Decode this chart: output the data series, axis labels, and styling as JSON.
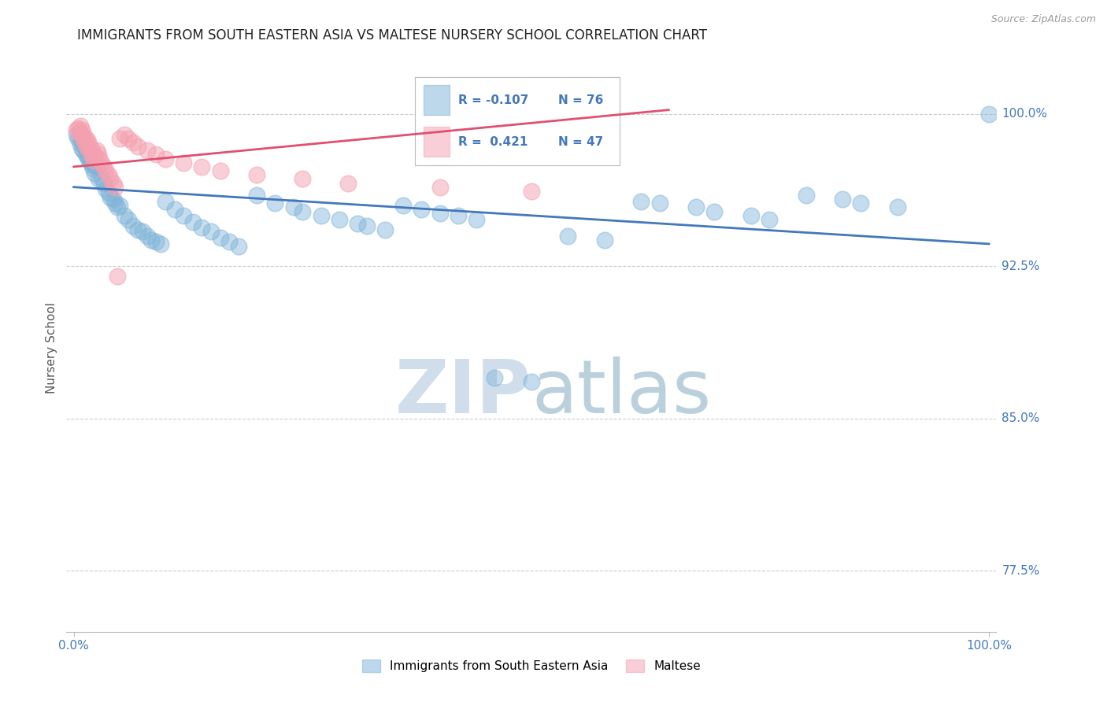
{
  "title": "IMMIGRANTS FROM SOUTH EASTERN ASIA VS MALTESE NURSERY SCHOOL CORRELATION CHART",
  "source": "Source: ZipAtlas.com",
  "ylabel": "Nursery School",
  "ymin": 0.745,
  "ymax": 1.025,
  "xmin": -0.008,
  "xmax": 1.008,
  "legend_r_blue": "-0.107",
  "legend_n_blue": "76",
  "legend_r_pink": "0.421",
  "legend_n_pink": "47",
  "blue_color": "#7EB3D8",
  "pink_color": "#F4A0B0",
  "trend_blue_color": "#4477BB",
  "trend_pink_color": "#E05070",
  "blue_trend_x0": 0.0,
  "blue_trend_y0": 0.964,
  "blue_trend_x1": 1.0,
  "blue_trend_y1": 0.936,
  "pink_trend_x0": 0.0,
  "pink_trend_y0": 0.974,
  "pink_trend_x1": 0.65,
  "pink_trend_y1": 1.002,
  "blue_x": [
    0.003,
    0.005,
    0.007,
    0.008,
    0.009,
    0.01,
    0.011,
    0.012,
    0.013,
    0.015,
    0.016,
    0.017,
    0.018,
    0.019,
    0.02,
    0.021,
    0.022,
    0.023,
    0.025,
    0.027,
    0.03,
    0.033,
    0.035,
    0.038,
    0.04,
    0.043,
    0.045,
    0.048,
    0.05,
    0.055,
    0.06,
    0.065,
    0.07,
    0.075,
    0.08,
    0.085,
    0.09,
    0.095,
    0.1,
    0.11,
    0.12,
    0.13,
    0.14,
    0.15,
    0.16,
    0.17,
    0.18,
    0.2,
    0.22,
    0.24,
    0.25,
    0.27,
    0.29,
    0.31,
    0.32,
    0.34,
    0.36,
    0.38,
    0.4,
    0.42,
    0.44,
    0.46,
    0.5,
    0.54,
    0.58,
    0.62,
    0.64,
    0.68,
    0.7,
    0.74,
    0.76,
    0.8,
    0.84,
    0.86,
    0.9,
    1.0
  ],
  "blue_y": [
    0.99,
    0.988,
    0.985,
    0.987,
    0.983,
    0.986,
    0.982,
    0.984,
    0.98,
    0.979,
    0.981,
    0.977,
    0.978,
    0.975,
    0.977,
    0.973,
    0.975,
    0.971,
    0.974,
    0.968,
    0.968,
    0.966,
    0.963,
    0.961,
    0.959,
    0.958,
    0.956,
    0.954,
    0.955,
    0.95,
    0.948,
    0.945,
    0.943,
    0.942,
    0.94,
    0.938,
    0.937,
    0.936,
    0.957,
    0.953,
    0.95,
    0.947,
    0.944,
    0.942,
    0.939,
    0.937,
    0.935,
    0.96,
    0.956,
    0.954,
    0.952,
    0.95,
    0.948,
    0.946,
    0.945,
    0.943,
    0.955,
    0.953,
    0.951,
    0.95,
    0.948,
    0.87,
    0.868,
    0.94,
    0.938,
    0.957,
    0.956,
    0.954,
    0.952,
    0.95,
    0.948,
    0.96,
    0.958,
    0.956,
    0.954,
    1.0
  ],
  "pink_x": [
    0.003,
    0.005,
    0.006,
    0.007,
    0.008,
    0.009,
    0.01,
    0.011,
    0.012,
    0.013,
    0.014,
    0.015,
    0.016,
    0.017,
    0.018,
    0.019,
    0.02,
    0.021,
    0.022,
    0.023,
    0.025,
    0.027,
    0.028,
    0.03,
    0.033,
    0.035,
    0.038,
    0.04,
    0.043,
    0.045,
    0.048,
    0.05,
    0.055,
    0.06,
    0.065,
    0.07,
    0.08,
    0.09,
    0.1,
    0.12,
    0.14,
    0.16,
    0.2,
    0.25,
    0.3,
    0.4,
    0.5
  ],
  "pink_y": [
    0.992,
    0.993,
    0.991,
    0.994,
    0.99,
    0.992,
    0.988,
    0.99,
    0.986,
    0.988,
    0.984,
    0.987,
    0.983,
    0.985,
    0.981,
    0.983,
    0.979,
    0.981,
    0.977,
    0.979,
    0.982,
    0.98,
    0.978,
    0.976,
    0.974,
    0.972,
    0.97,
    0.968,
    0.966,
    0.964,
    0.92,
    0.988,
    0.99,
    0.988,
    0.986,
    0.984,
    0.982,
    0.98,
    0.978,
    0.976,
    0.974,
    0.972,
    0.97,
    0.968,
    0.966,
    0.964,
    0.962
  ],
  "watermark_zip": "ZIP",
  "watermark_atlas": "atlas",
  "background_color": "#FFFFFF",
  "grid_color": "#CCCCCC",
  "title_color": "#222222",
  "right_label_color": "#4477BB",
  "source_color": "#999999",
  "ylabel_color": "#555555"
}
